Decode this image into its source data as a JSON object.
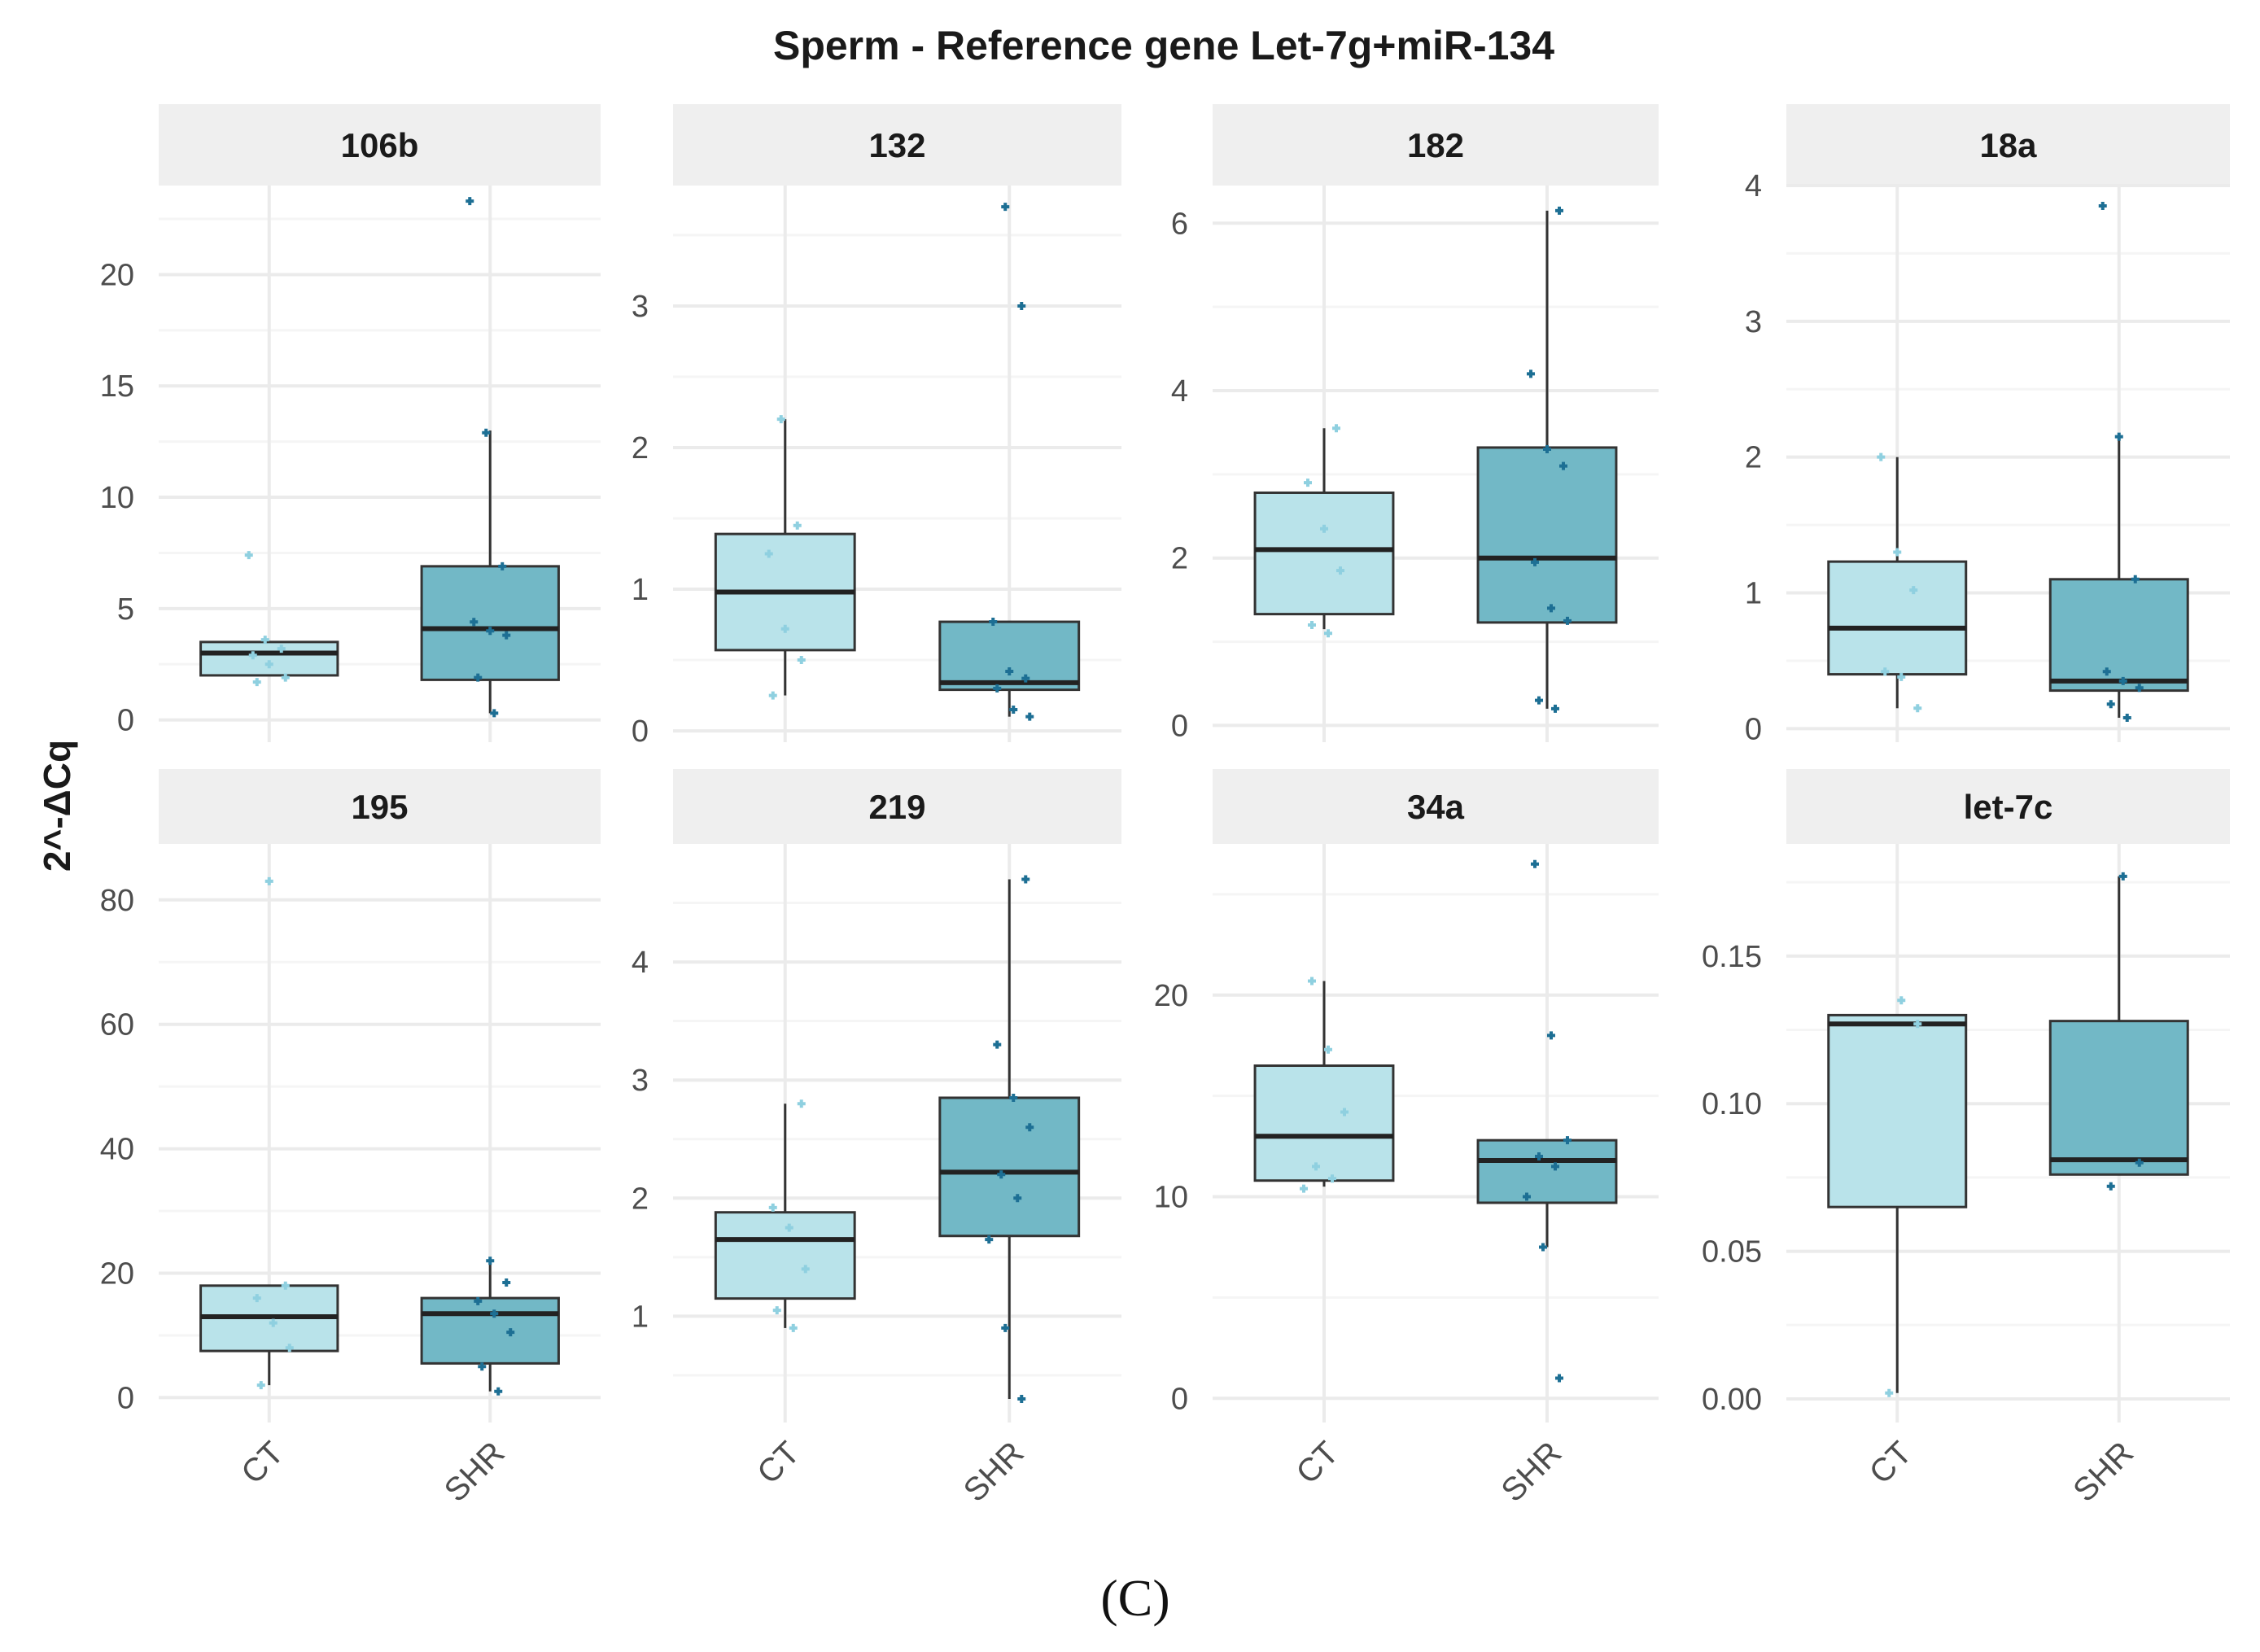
{
  "chart_data": {
    "type": "box",
    "title": "Sperm - Reference gene Let-7g+miR-134",
    "ylabel": "2^-ΔCq",
    "xlabel": "",
    "caption": "(C)",
    "groups": [
      "CT",
      "SHR"
    ],
    "colors": {
      "CT": "#b9e3ea",
      "SHR": "#72b8c6",
      "CT_points": "#8fd0e0",
      "SHR_points": "#1d6f94",
      "strip": "#efefef",
      "grid_major": "#ebebeb",
      "grid_minor": "#f5f5f5"
    },
    "panels": [
      {
        "label": "106b",
        "ylim": [
          -1,
          24
        ],
        "yticks": [
          0,
          5,
          10,
          15,
          20
        ],
        "boxes": {
          "CT": {
            "q1": 2.0,
            "median": 3.0,
            "q3": 3.5,
            "whisker_low": 2.0,
            "whisker_high": 3.5,
            "points": [
              7.4,
              3.6,
              3.2,
              2.9,
              2.5,
              1.9,
              1.7
            ]
          },
          "SHR": {
            "q1": 1.8,
            "median": 4.1,
            "q3": 6.9,
            "whisker_low": 0.3,
            "whisker_high": 13.0,
            "points": [
              23.3,
              12.9,
              6.9,
              4.4,
              4.0,
              3.8,
              1.9,
              0.3
            ]
          }
        }
      },
      {
        "label": "132",
        "ylim": [
          -0.08,
          3.85
        ],
        "yticks": [
          0,
          1,
          2,
          3
        ],
        "boxes": {
          "CT": {
            "q1": 0.57,
            "median": 0.98,
            "q3": 1.39,
            "whisker_low": 0.25,
            "whisker_high": 2.2,
            "points": [
              2.2,
              1.45,
              1.25,
              0.72,
              0.5,
              0.25
            ]
          },
          "SHR": {
            "q1": 0.29,
            "median": 0.34,
            "q3": 0.77,
            "whisker_low": 0.1,
            "whisker_high": 0.77,
            "points": [
              3.7,
              3.0,
              0.77,
              0.42,
              0.37,
              0.3,
              0.15,
              0.1
            ]
          }
        }
      },
      {
        "label": "182",
        "ylim": [
          -0.2,
          6.45
        ],
        "yticks": [
          0,
          2,
          4,
          6
        ],
        "boxes": {
          "CT": {
            "q1": 1.33,
            "median": 2.1,
            "q3": 2.78,
            "whisker_low": 1.15,
            "whisker_high": 3.55,
            "points": [
              3.55,
              2.9,
              2.35,
              1.85,
              1.2,
              1.1
            ]
          },
          "SHR": {
            "q1": 1.23,
            "median": 2.0,
            "q3": 3.32,
            "whisker_low": 0.2,
            "whisker_high": 6.15,
            "points": [
              6.15,
              4.2,
              3.3,
              3.1,
              1.95,
              1.4,
              1.25,
              0.3,
              0.2
            ]
          }
        }
      },
      {
        "label": "18a",
        "ylim": [
          -0.1,
          4.0
        ],
        "yticks": [
          0,
          1,
          2,
          3,
          4
        ],
        "boxes": {
          "CT": {
            "q1": 0.4,
            "median": 0.74,
            "q3": 1.23,
            "whisker_low": 0.15,
            "whisker_high": 2.0,
            "points": [
              2.0,
              1.3,
              1.02,
              0.42,
              0.38,
              0.15
            ]
          },
          "SHR": {
            "q1": 0.28,
            "median": 0.35,
            "q3": 1.1,
            "whisker_low": 0.08,
            "whisker_high": 2.15,
            "points": [
              3.85,
              2.15,
              1.1,
              0.42,
              0.35,
              0.3,
              0.18,
              0.08
            ]
          }
        }
      },
      {
        "label": "195",
        "ylim": [
          -4,
          89
        ],
        "yticks": [
          0,
          20,
          40,
          60,
          80
        ],
        "boxes": {
          "CT": {
            "q1": 7.5,
            "median": 13.0,
            "q3": 18.0,
            "whisker_low": 2.0,
            "whisker_high": 18.0,
            "points": [
              83.0,
              18.0,
              16.0,
              12.0,
              8.0,
              2.0
            ]
          },
          "SHR": {
            "q1": 5.5,
            "median": 13.5,
            "q3": 16.0,
            "whisker_low": 1.0,
            "whisker_high": 22.0,
            "points": [
              22.0,
              18.5,
              15.5,
              13.5,
              10.5,
              5.0,
              1.0
            ]
          }
        }
      },
      {
        "label": "219",
        "ylim": [
          0.1,
          5.0
        ],
        "yticks": [
          1,
          2,
          3,
          4
        ],
        "boxes": {
          "CT": {
            "q1": 1.15,
            "median": 1.65,
            "q3": 1.88,
            "whisker_low": 0.9,
            "whisker_high": 2.8,
            "points": [
              2.8,
              1.92,
              1.75,
              1.4,
              1.05,
              0.9
            ]
          },
          "SHR": {
            "q1": 1.68,
            "median": 2.22,
            "q3": 2.85,
            "whisker_low": 0.3,
            "whisker_high": 4.7,
            "points": [
              4.7,
              3.3,
              2.85,
              2.6,
              2.2,
              2.0,
              1.65,
              0.9,
              0.3
            ]
          }
        }
      },
      {
        "label": "34a",
        "ylim": [
          -1.2,
          27.5
        ],
        "yticks": [
          0,
          10,
          20
        ],
        "boxes": {
          "CT": {
            "q1": 10.8,
            "median": 13.0,
            "q3": 16.5,
            "whisker_low": 10.5,
            "whisker_high": 20.7,
            "points": [
              20.7,
              17.3,
              14.2,
              11.5,
              10.9,
              10.4
            ]
          },
          "SHR": {
            "q1": 9.7,
            "median": 11.8,
            "q3": 12.8,
            "whisker_low": 7.5,
            "whisker_high": 12.8,
            "points": [
              26.5,
              18.0,
              12.8,
              12.0,
              11.5,
              10.0,
              7.5,
              1.0
            ]
          }
        }
      },
      {
        "label": "let-7c",
        "ylim": [
          -0.008,
          0.188
        ],
        "yticks": [
          0.0,
          0.05,
          0.1,
          0.15
        ],
        "tick_decimals": 2,
        "boxes": {
          "CT": {
            "q1": 0.065,
            "median": 0.127,
            "q3": 0.13,
            "whisker_low": 0.002,
            "whisker_high": 0.13,
            "points": [
              0.135,
              0.127,
              0.002
            ]
          },
          "SHR": {
            "q1": 0.076,
            "median": 0.081,
            "q3": 0.128,
            "whisker_low": 0.076,
            "whisker_high": 0.177,
            "points": [
              0.177,
              0.08,
              0.072
            ]
          }
        }
      }
    ]
  }
}
